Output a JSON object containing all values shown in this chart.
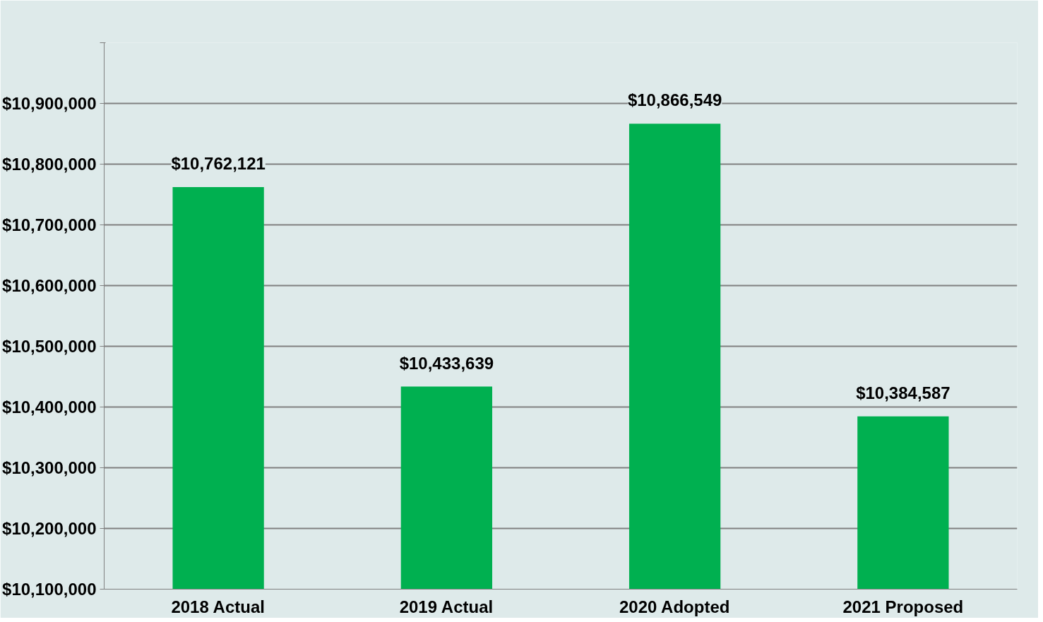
{
  "chart_data": {
    "type": "bar",
    "categories": [
      "2018 Actual",
      "2019 Actual",
      "2020 Adopted",
      "2021 Proposed"
    ],
    "values": [
      10762121,
      10433639,
      10866549,
      10384587
    ],
    "color": "#00b050",
    "value_labels": [
      "$10,762,121",
      "$10,433,639",
      "$10,866,549",
      "$10,384,587"
    ],
    "ylim": [
      10100000,
      11000000
    ],
    "yticks": [
      {
        "value": 10100000,
        "label": "$10,100,000"
      },
      {
        "value": 10200000,
        "label": "$10,200,000"
      },
      {
        "value": 10300000,
        "label": "$10,300,000"
      },
      {
        "value": 10400000,
        "label": "$10,400,000"
      },
      {
        "value": 10500000,
        "label": "$10,500,000"
      },
      {
        "value": 10600000,
        "label": "$10,600,000"
      },
      {
        "value": 10700000,
        "label": "$10,700,000"
      },
      {
        "value": 10800000,
        "label": "$10,800,000"
      },
      {
        "value": 10900000,
        "label": "$10,900,000"
      },
      {
        "value": 11000000,
        "label": null
      }
    ],
    "grid": "y"
  }
}
